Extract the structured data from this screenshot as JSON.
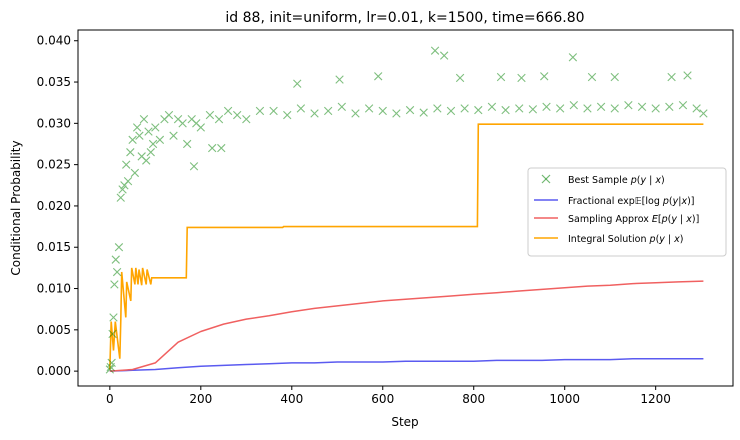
{
  "chart_data": {
    "type": "line",
    "title": "id 88, init=uniform, lr=0.01, k=1500, time=666.80",
    "xlabel": "Step",
    "ylabel": "Conditional Probability",
    "xlim": [
      -70,
      1370
    ],
    "ylim": [
      -0.0018,
      0.0413
    ],
    "xticks": [
      0,
      200,
      400,
      600,
      800,
      1000,
      1200
    ],
    "xtick_labels": [
      "0",
      "200",
      "400",
      "600",
      "800",
      "1000",
      "1200"
    ],
    "yticks": [
      0.0,
      0.005,
      0.01,
      0.015,
      0.02,
      0.025,
      0.03,
      0.035,
      0.04
    ],
    "ytick_labels": [
      "0.000",
      "0.005",
      "0.010",
      "0.015",
      "0.020",
      "0.025",
      "0.030",
      "0.035",
      "0.040"
    ],
    "grid": false,
    "legend_position": "center-right",
    "series": [
      {
        "name": "Best Sample p(y | x)",
        "kind": "scatter",
        "marker": "x",
        "color": "#008000",
        "x": [
          0,
          2,
          4,
          6,
          8,
          10,
          13,
          16,
          20,
          24,
          28,
          32,
          36,
          40,
          45,
          50,
          55,
          60,
          65,
          70,
          75,
          80,
          85,
          90,
          95,
          100,
          110,
          120,
          130,
          140,
          150,
          160,
          170,
          180,
          190,
          200,
          220,
          240,
          260,
          280,
          300,
          330,
          360,
          390,
          420,
          450,
          480,
          510,
          540,
          570,
          600,
          630,
          660,
          690,
          720,
          750,
          780,
          810,
          840,
          870,
          900,
          930,
          960,
          990,
          1020,
          1050,
          1080,
          1110,
          1140,
          1170,
          1200,
          1230,
          1260,
          1290,
          1305,
          412,
          505,
          590,
          715,
          735,
          770,
          860,
          905,
          955,
          1018,
          1060,
          1110,
          1235,
          1270,
          225,
          245,
          185
        ],
        "y": [
          0.0002,
          0.0005,
          0.001,
          0.0045,
          0.0065,
          0.0105,
          0.0135,
          0.012,
          0.015,
          0.021,
          0.022,
          0.0225,
          0.025,
          0.023,
          0.0265,
          0.028,
          0.024,
          0.0295,
          0.0285,
          0.026,
          0.0305,
          0.0255,
          0.029,
          0.0265,
          0.0275,
          0.0295,
          0.028,
          0.0305,
          0.031,
          0.0285,
          0.0305,
          0.03,
          0.0275,
          0.0305,
          0.03,
          0.0295,
          0.031,
          0.0305,
          0.0315,
          0.031,
          0.0305,
          0.0315,
          0.0315,
          0.031,
          0.0318,
          0.0312,
          0.0315,
          0.032,
          0.0312,
          0.0318,
          0.0315,
          0.0312,
          0.0316,
          0.0313,
          0.0318,
          0.0315,
          0.0318,
          0.0316,
          0.032,
          0.0316,
          0.0318,
          0.0317,
          0.032,
          0.0318,
          0.0322,
          0.0318,
          0.032,
          0.0318,
          0.0322,
          0.032,
          0.0318,
          0.032,
          0.0322,
          0.0318,
          0.0312,
          0.0348,
          0.0353,
          0.0357,
          0.0388,
          0.0382,
          0.0355,
          0.0356,
          0.0355,
          0.0357,
          0.038,
          0.0356,
          0.0356,
          0.0356,
          0.0358,
          0.027,
          0.027,
          0.0248
        ]
      },
      {
        "name": "Fractional exp𝔼[log p(y|x)]",
        "kind": "line",
        "color": "#5a5af0",
        "x": [
          0,
          50,
          100,
          150,
          200,
          250,
          300,
          350,
          400,
          450,
          500,
          550,
          600,
          650,
          700,
          750,
          800,
          850,
          900,
          950,
          1000,
          1050,
          1100,
          1150,
          1200,
          1250,
          1305
        ],
        "y": [
          0.0,
          0.0001,
          0.0002,
          0.0004,
          0.0006,
          0.0007,
          0.0008,
          0.0009,
          0.001,
          0.001,
          0.0011,
          0.0011,
          0.0011,
          0.0012,
          0.0012,
          0.0012,
          0.0012,
          0.0013,
          0.0013,
          0.0013,
          0.0014,
          0.0014,
          0.0014,
          0.0015,
          0.0015,
          0.0015,
          0.0015
        ]
      },
      {
        "name": "Sampling Approx E[p(y | x)]",
        "kind": "line",
        "color": "#f06060",
        "x": [
          0,
          50,
          100,
          150,
          200,
          250,
          300,
          350,
          400,
          450,
          500,
          550,
          600,
          650,
          700,
          750,
          800,
          850,
          900,
          950,
          1000,
          1050,
          1100,
          1150,
          1200,
          1250,
          1305
        ],
        "y": [
          0.0,
          0.0002,
          0.001,
          0.0035,
          0.0048,
          0.0057,
          0.0063,
          0.0067,
          0.0072,
          0.0076,
          0.0079,
          0.0082,
          0.0085,
          0.0087,
          0.0089,
          0.0091,
          0.0093,
          0.0095,
          0.0097,
          0.0099,
          0.0101,
          0.0103,
          0.0104,
          0.0106,
          0.0107,
          0.0108,
          0.0109
        ]
      },
      {
        "name": "Integral Solution p(y | x)",
        "kind": "step",
        "color": "#ffa500",
        "x": [
          0,
          3,
          8,
          12,
          22,
          24,
          26,
          35,
          37,
          46,
          48,
          55,
          57,
          62,
          64,
          70,
          72,
          80,
          82,
          90,
          92,
          100,
          102,
          168,
          170,
          380,
          382,
          808,
          810,
          1305
        ],
        "y": [
          0.0002,
          0.006,
          0.0025,
          0.006,
          0.0015,
          0.0062,
          0.012,
          0.0065,
          0.0108,
          0.0085,
          0.0125,
          0.0105,
          0.0125,
          0.0105,
          0.0123,
          0.0104,
          0.0125,
          0.0105,
          0.0123,
          0.0105,
          0.0113,
          0.0113,
          0.0113,
          0.0113,
          0.0174,
          0.0174,
          0.0175,
          0.0175,
          0.0299,
          0.0299
        ]
      }
    ],
    "legend_labels": [
      "Best Sample $p(y\\mid x)$",
      "Fractional exp$\\mathbb{E}[\\log p(y|x)]$",
      "Sampling Approx $E[p(y\\mid x)]$",
      "Integral Solution $p(y\\mid x)$"
    ]
  }
}
